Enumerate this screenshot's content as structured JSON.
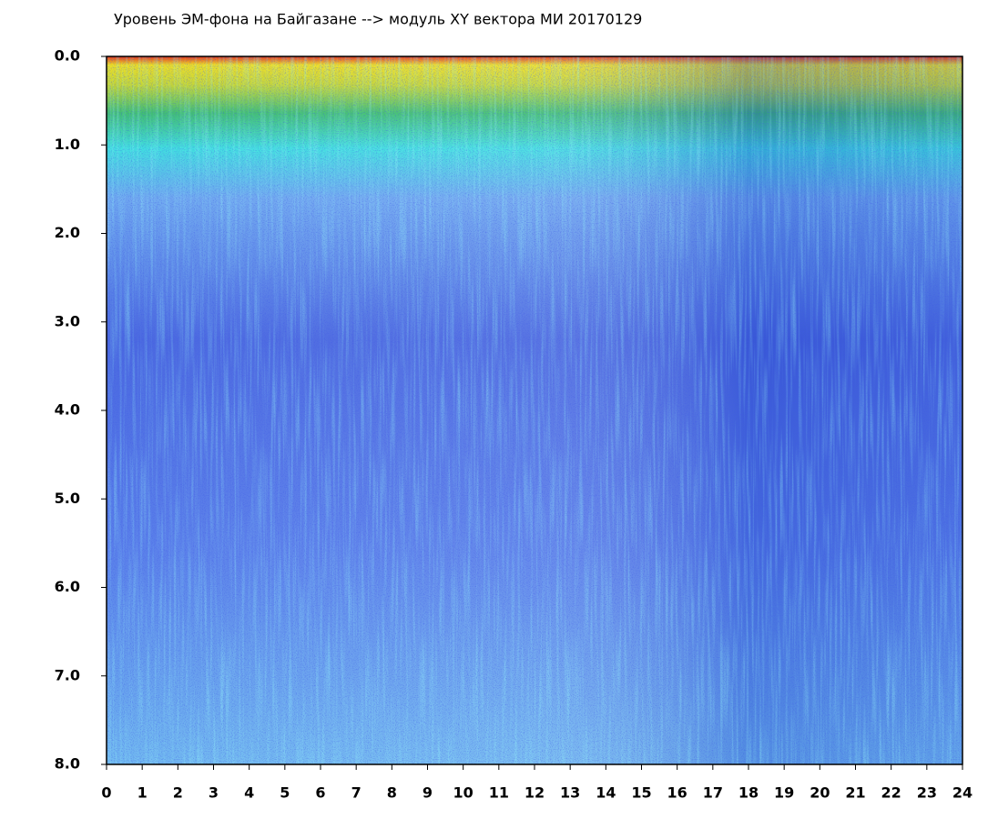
{
  "chart_data": {
    "type": "heatmap",
    "title": "Уровень ЭМ-фона на Байгазане   -->  модуль XY вектора МИ   20170129",
    "xlim": [
      0,
      24
    ],
    "xticks": [
      0,
      1,
      2,
      3,
      4,
      5,
      6,
      7,
      8,
      9,
      10,
      11,
      12,
      13,
      14,
      15,
      16,
      17,
      18,
      19,
      20,
      21,
      22,
      23,
      24
    ],
    "ylim": [
      8,
      0
    ],
    "yticks": [
      {
        "value": 0,
        "label": "0.0"
      },
      {
        "value": 1,
        "label": "1.0"
      },
      {
        "value": 2,
        "label": "2.0"
      },
      {
        "value": 3,
        "label": "3.0"
      },
      {
        "value": 4,
        "label": "4.0"
      },
      {
        "value": 5,
        "label": "5.0"
      },
      {
        "value": 6,
        "label": "6.0"
      },
      {
        "value": 7,
        "label": "7.0"
      },
      {
        "value": 8,
        "label": "8.0"
      }
    ]
  }
}
